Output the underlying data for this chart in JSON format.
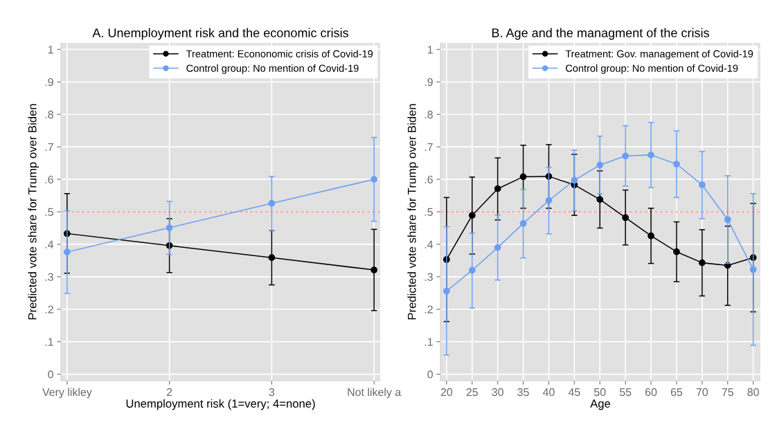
{
  "chart_data": [
    {
      "type": "line",
      "title": "A. Unemployment risk and the economic crisis",
      "xlabel": "Unemployment risk (1=very; 4=none)",
      "ylabel": "Predicted vote share for Trump over Biden",
      "categories": [
        "Very likley",
        "2",
        "3",
        "Not likely a"
      ],
      "series": [
        {
          "name": "Treatment: Econonomic crisis of Covid-19",
          "color": "#000000",
          "values": [
            0.433,
            0.396,
            0.359,
            0.321
          ],
          "errors": [
            [
              0.311,
              0.556
            ],
            [
              0.313,
              0.479
            ],
            [
              0.275,
              0.443
            ],
            [
              0.196,
              0.446
            ]
          ]
        },
        {
          "name": "Control group: No mention of Covid-19",
          "color": "#6b9ef5",
          "values": [
            0.376,
            0.451,
            0.526,
            0.6
          ],
          "errors": [
            [
              0.249,
              0.503
            ],
            [
              0.369,
              0.532
            ],
            [
              0.443,
              0.609
            ],
            [
              0.471,
              0.729
            ]
          ]
        }
      ],
      "ylim": [
        -0.02,
        1.02
      ],
      "yticks": [
        0,
        {
          "value": 0.1,
          "label": ".1"
        },
        {
          "value": 0.2,
          "label": ".2"
        },
        {
          "value": 0.3,
          "label": ".3"
        },
        {
          "value": 0.4,
          "label": ".4"
        },
        {
          "value": 0.5,
          "label": ".5"
        },
        {
          "value": 0.6,
          "label": ".6"
        },
        {
          "value": 0.7,
          "label": ".7"
        },
        {
          "value": 0.8,
          "label": ".8"
        },
        {
          "value": 0.9,
          "label": ".9"
        },
        1
      ],
      "ref_lines": [
        {
          "axis": "y",
          "value": 0.5,
          "color": "#f2968e",
          "line_style": "dashed"
        }
      ],
      "grid": true,
      "legend": "top right",
      "marker": "circle",
      "line_style": "solid"
    },
    {
      "type": "line",
      "title": "B. Age and the managment of the crisis",
      "xlabel": "Age",
      "ylabel": "Predicted vote share for Trump over Biden",
      "x": [
        20,
        25,
        30,
        35,
        40,
        45,
        50,
        55,
        60,
        65,
        70,
        75,
        80
      ],
      "series": [
        {
          "name": "Treatment: Gov. management of Covid-19",
          "color": "#000000",
          "values": [
            0.353,
            0.489,
            0.571,
            0.608,
            0.609,
            0.583,
            0.538,
            0.482,
            0.426,
            0.377,
            0.343,
            0.335,
            0.359
          ],
          "errors": [
            [
              0.162,
              0.544
            ],
            [
              0.37,
              0.607
            ],
            [
              0.475,
              0.666
            ],
            [
              0.511,
              0.705
            ],
            [
              0.511,
              0.707
            ],
            [
              0.489,
              0.677
            ],
            [
              0.45,
              0.626
            ],
            [
              0.398,
              0.567
            ],
            [
              0.341,
              0.511
            ],
            [
              0.285,
              0.469
            ],
            [
              0.241,
              0.445
            ],
            [
              0.212,
              0.456
            ],
            [
              0.192,
              0.526
            ]
          ]
        },
        {
          "name": "Control group: No mention of Covid-19",
          "color": "#6b9ef5",
          "values": [
            0.256,
            0.32,
            0.39,
            0.464,
            0.535,
            0.597,
            0.644,
            0.672,
            0.675,
            0.647,
            0.583,
            0.476,
            0.322
          ],
          "errors": [
            [
              0.059,
              0.454
            ],
            [
              0.204,
              0.434
            ],
            [
              0.29,
              0.49
            ],
            [
              0.358,
              0.569
            ],
            [
              0.432,
              0.637
            ],
            [
              0.503,
              0.69
            ],
            [
              0.555,
              0.733
            ],
            [
              0.579,
              0.765
            ],
            [
              0.575,
              0.775
            ],
            [
              0.544,
              0.749
            ],
            [
              0.479,
              0.686
            ],
            [
              0.341,
              0.611
            ],
            [
              0.089,
              0.556
            ]
          ]
        }
      ],
      "xlim": [
        18.8,
        81.4
      ],
      "xticks": [
        20,
        25,
        30,
        35,
        40,
        45,
        50,
        55,
        60,
        65,
        70,
        75,
        80
      ],
      "ylim": [
        -0.02,
        1.02
      ],
      "yticks": [
        0,
        {
          "value": 0.1,
          "label": ".1"
        },
        {
          "value": 0.2,
          "label": ".2"
        },
        {
          "value": 0.3,
          "label": ".3"
        },
        {
          "value": 0.4,
          "label": ".4"
        },
        {
          "value": 0.5,
          "label": ".5"
        },
        {
          "value": 0.6,
          "label": ".6"
        },
        {
          "value": 0.7,
          "label": ".7"
        },
        {
          "value": 0.8,
          "label": ".8"
        },
        {
          "value": 0.9,
          "label": ".9"
        },
        1
      ],
      "ref_lines": [
        {
          "axis": "y",
          "value": 0.5,
          "color": "#f2968e",
          "line_style": "dashed"
        }
      ],
      "grid": true,
      "legend": "top right",
      "marker": "circle",
      "line_style": "solid"
    }
  ]
}
